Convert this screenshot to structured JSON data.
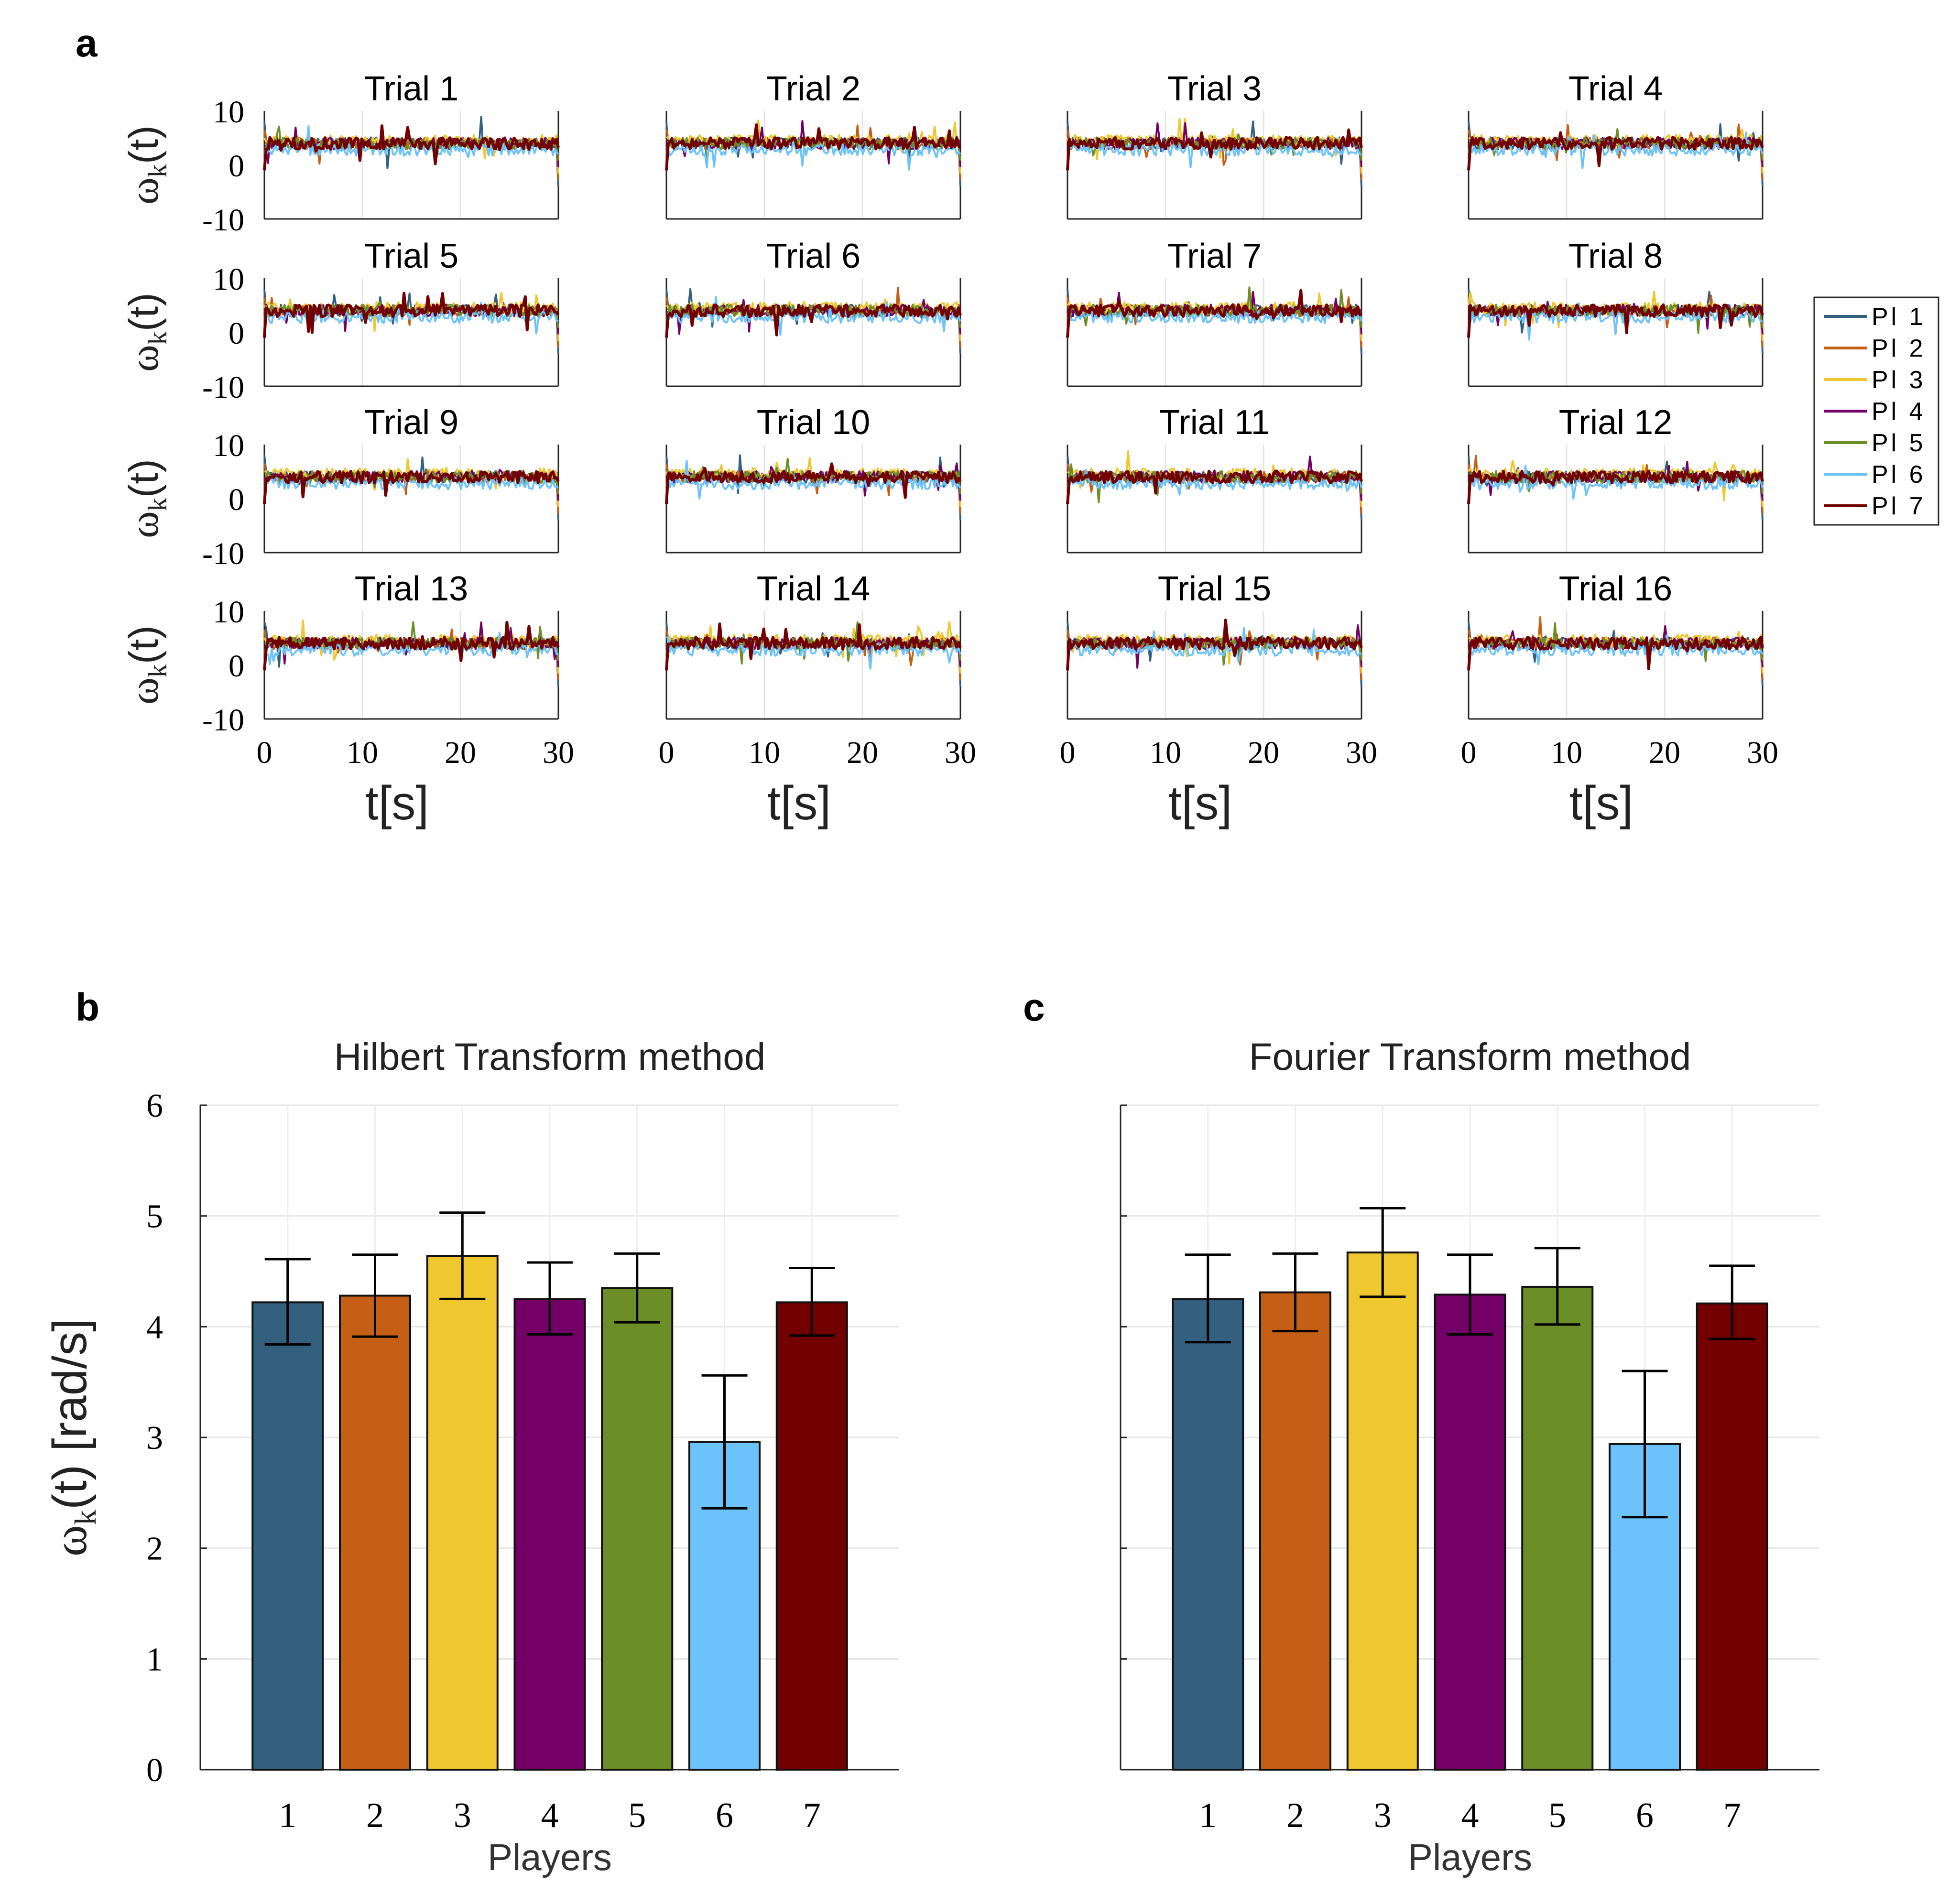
{
  "panel_labels": {
    "a": "a",
    "b": "b",
    "c": "c"
  },
  "colors": {
    "Pl 1": "#34607f",
    "Pl 2": "#c55f15",
    "Pl 3": "#efc72f",
    "Pl 4": "#720066",
    "Pl 5": "#6c8e27",
    "Pl 6": "#6cc2fb",
    "Pl 7": "#720000"
  },
  "chart_data": [
    {
      "panel": "a",
      "type": "line",
      "title": "Trial 1 … Trial 16",
      "trials": [
        "Trial 1",
        "Trial 2",
        "Trial 3",
        "Trial 4",
        "Trial 5",
        "Trial 6",
        "Trial 7",
        "Trial 8",
        "Trial 9",
        "Trial 10",
        "Trial 11",
        "Trial 12",
        "Trial 13",
        "Trial 14",
        "Trial 15",
        "Trial 16"
      ],
      "xlabel": "t[s]",
      "ylabel_main": "ω",
      "ylabel_sub": "k",
      "ylabel_tail": "(t)",
      "xlim": [
        0,
        30
      ],
      "ylim": [
        -10,
        10
      ],
      "xticks": [
        "0",
        "10",
        "20",
        "30"
      ],
      "yticks": [
        "10",
        "0",
        "-10"
      ],
      "legend": [
        "Pl 1",
        "Pl 2",
        "Pl 3",
        "Pl 4",
        "Pl 5",
        "Pl 6",
        "Pl 7"
      ],
      "legend_position": "right",
      "series_mean_level": {
        "Pl 1": 4,
        "Pl 2": 4,
        "Pl 3": 4.5,
        "Pl 4": 4,
        "Pl 5": 4,
        "Pl 6": 2.8,
        "Pl 7": 4
      },
      "grid": true
    },
    {
      "panel": "b",
      "type": "bar",
      "title": "Hilbert Transform method",
      "categories": [
        "1",
        "2",
        "3",
        "4",
        "5",
        "6",
        "7"
      ],
      "values": [
        4.22,
        4.28,
        4.64,
        4.25,
        4.35,
        2.96,
        4.22
      ],
      "error_low": [
        3.84,
        3.91,
        4.25,
        3.93,
        4.04,
        2.36,
        3.92
      ],
      "error_high": [
        4.61,
        4.65,
        5.03,
        4.58,
        4.66,
        3.56,
        4.53
      ],
      "xlabel": "Players",
      "ylabel_main": "ω",
      "ylabel_sub": "k",
      "ylabel_tail": "(t) [rad/s]",
      "ylim": [
        0,
        6
      ],
      "yticks": [
        "0",
        "1",
        "2",
        "3",
        "4",
        "5",
        "6"
      ],
      "grid": true
    },
    {
      "panel": "c",
      "type": "bar",
      "title": "Fourier Transform method",
      "categories": [
        "1",
        "2",
        "3",
        "4",
        "5",
        "6",
        "7"
      ],
      "values": [
        4.25,
        4.31,
        4.67,
        4.29,
        4.36,
        2.94,
        4.21
      ],
      "error_low": [
        3.86,
        3.96,
        4.27,
        3.93,
        4.02,
        2.28,
        3.89
      ],
      "error_high": [
        4.65,
        4.66,
        5.07,
        4.65,
        4.71,
        3.6,
        4.55
      ],
      "xlabel": "Players",
      "ylim": [
        0,
        6
      ],
      "grid": true
    }
  ]
}
